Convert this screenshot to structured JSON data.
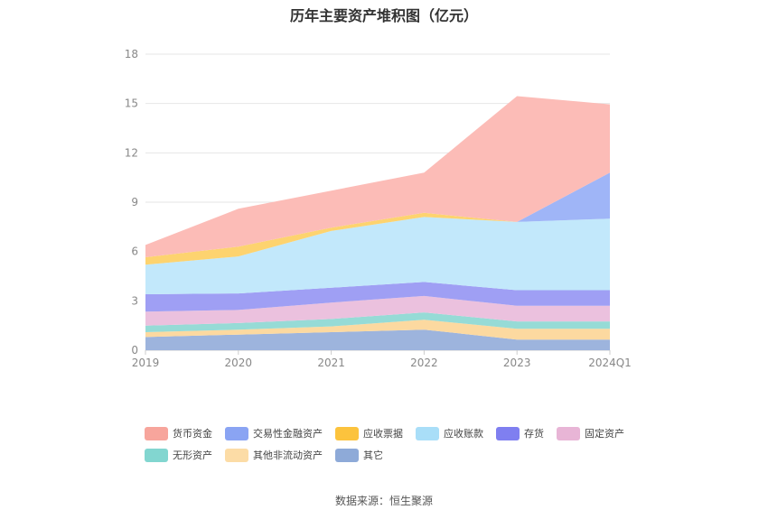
{
  "title": "历年主要资产堆积图（亿元）",
  "source": "数据来源：恒生聚源",
  "chart_data": {
    "type": "area",
    "stacked": true,
    "title": "历年主要资产堆积图（亿元）",
    "categories": [
      "2019",
      "2020",
      "2021",
      "2022",
      "2023",
      "2024Q1"
    ],
    "ylim": [
      0,
      18
    ],
    "yticks": [
      0,
      3,
      6,
      9,
      12,
      15,
      18
    ],
    "grid": true,
    "legend_position": "bottom",
    "series": [
      {
        "name": "其它",
        "color": "#9db4dd",
        "values": [
          0.8,
          0.95,
          1.1,
          1.25,
          0.65,
          0.65
        ]
      },
      {
        "name": "其他非流动资产",
        "color": "#fcd9a0",
        "values": [
          0.3,
          0.3,
          0.35,
          0.6,
          0.65,
          0.65
        ]
      },
      {
        "name": "无形资产",
        "color": "#96dbd6",
        "values": [
          0.4,
          0.4,
          0.45,
          0.45,
          0.45,
          0.45
        ]
      },
      {
        "name": "固定资产",
        "color": "#ebc1de",
        "values": [
          0.85,
          0.8,
          1.0,
          1.0,
          0.95,
          0.95
        ]
      },
      {
        "name": "存货",
        "color": "#9f9ff4",
        "values": [
          1.05,
          1.0,
          0.9,
          0.85,
          0.95,
          0.95
        ]
      },
      {
        "name": "应收账款",
        "color": "#c2e8fb",
        "values": [
          1.8,
          2.25,
          3.45,
          3.95,
          4.15,
          4.35
        ]
      },
      {
        "name": "应收票据",
        "color": "#fdd36f",
        "values": [
          0.45,
          0.6,
          0.2,
          0.25,
          0.0,
          0.0
        ]
      },
      {
        "name": "交易性金融资产",
        "color": "#9fb5f7",
        "values": [
          0.0,
          0.0,
          0.0,
          0.0,
          0.0,
          2.8
        ]
      },
      {
        "name": "货币资金",
        "color": "#fcbcb7",
        "values": [
          0.75,
          2.3,
          2.25,
          2.45,
          7.65,
          4.15
        ]
      }
    ]
  },
  "legend": [
    {
      "name": "货币资金",
      "color": "#f7a59c"
    },
    {
      "name": "交易性金融资产",
      "color": "#8aa4f3"
    },
    {
      "name": "应收票据",
      "color": "#fcc33d"
    },
    {
      "name": "应收账款",
      "color": "#a9def8"
    },
    {
      "name": "存货",
      "color": "#7f7ff0"
    },
    {
      "name": "固定资产",
      "color": "#e8b5d6"
    },
    {
      "name": "无形资产",
      "color": "#82d6d0"
    },
    {
      "name": "其他非流动资产",
      "color": "#fcdca6"
    },
    {
      "name": "其它",
      "color": "#8eaad8"
    }
  ]
}
